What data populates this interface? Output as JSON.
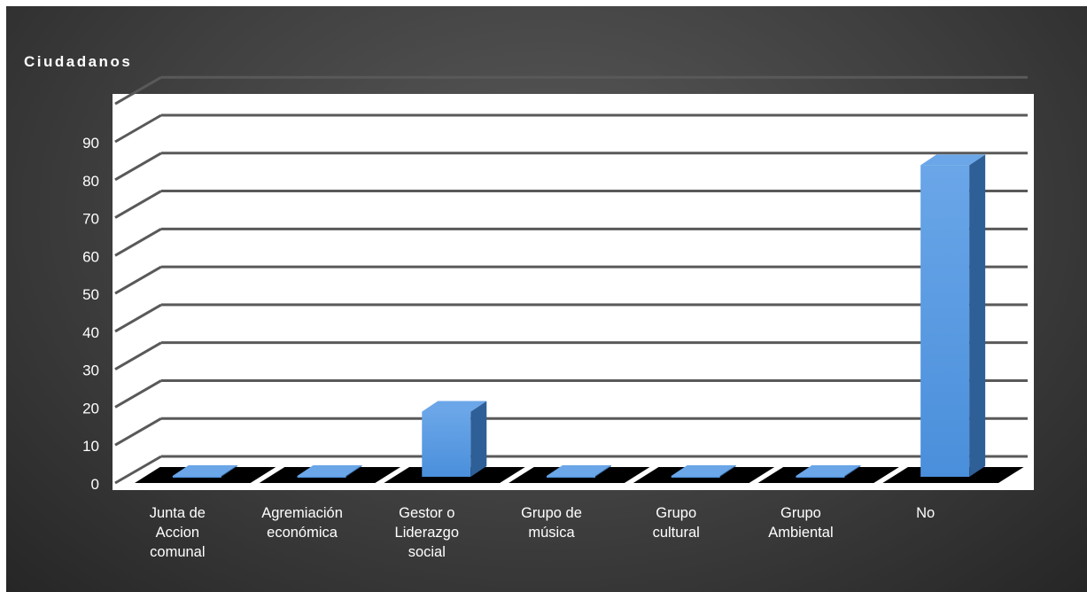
{
  "chart_data": {
    "type": "bar",
    "title": "Ciudadanos",
    "categories": [
      [
        "Junta de",
        "Accion",
        "comunal"
      ],
      [
        "Agremiación",
        "económica"
      ],
      [
        "Gestor o",
        "Liderazgo",
        "social"
      ],
      [
        "Grupo de",
        "música"
      ],
      [
        "Grupo",
        "cultural"
      ],
      [
        "Grupo",
        "Ambiental"
      ],
      [
        "No"
      ]
    ],
    "values": [
      0,
      0,
      20,
      0,
      0,
      0,
      85
    ],
    "ylim": [
      0,
      95
    ],
    "yticks": [
      "0",
      "10",
      "20",
      "30",
      "40",
      "50",
      "60",
      "70",
      "80",
      "90"
    ],
    "xlabel": "",
    "ylabel": "",
    "grid": true,
    "legend": false,
    "three_d": true,
    "colors": {
      "bar_front": "#4a8fdb",
      "bar_side": "#2f5f97",
      "bar_top": "#6aa6e8",
      "plot_bg": "#ffffff",
      "grid": "#595959",
      "floor": "#000000",
      "text": "#ffffff"
    }
  }
}
